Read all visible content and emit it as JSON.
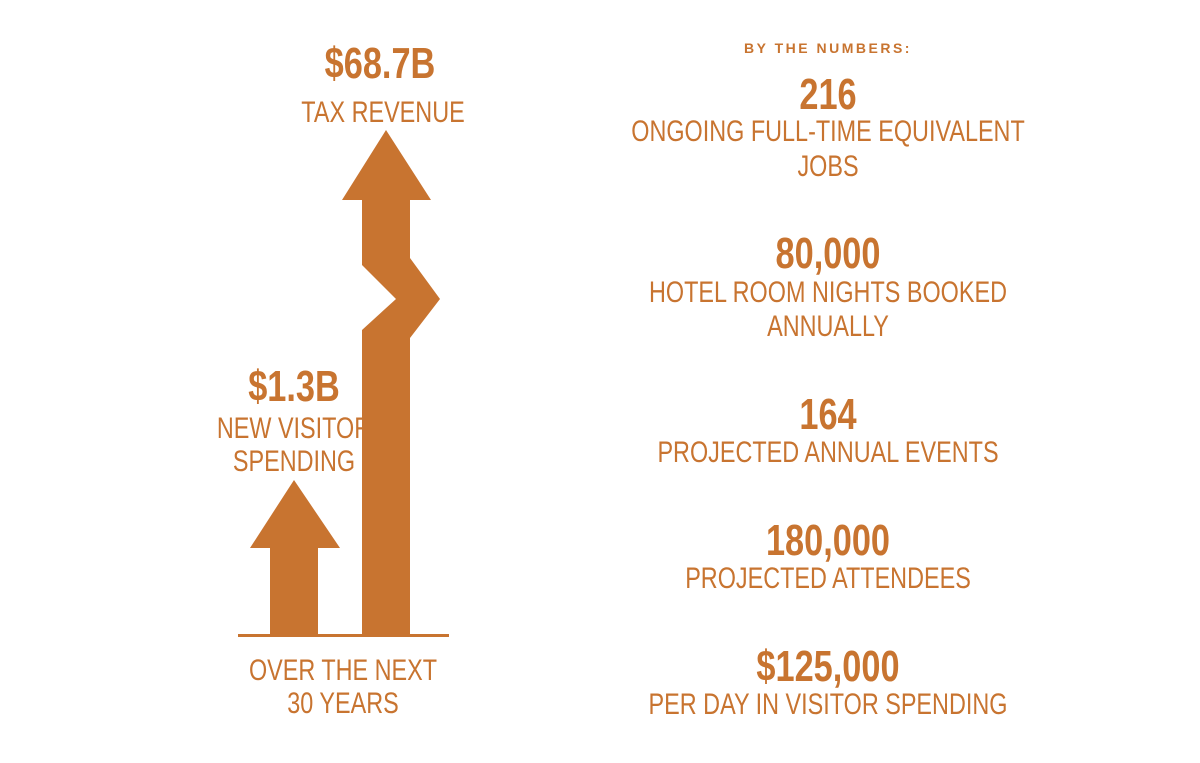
{
  "colors": {
    "accent": "#c87430",
    "background": "#ffffff"
  },
  "left": {
    "tax_revenue": {
      "value": "$68.7B",
      "label": "TAX REVENUE"
    },
    "visitor_spending": {
      "value": "$1.3B",
      "label_line1": "NEW VISITOR",
      "label_line2": "SPENDING"
    },
    "footer_line1": "OVER THE NEXT",
    "footer_line2": "30 YEARS"
  },
  "right": {
    "header": "BY THE NUMBERS:",
    "stats": [
      {
        "value": "216",
        "label_line1": "ONGOING FULL-TIME EQUIVALENT",
        "label_line2": "JOBS"
      },
      {
        "value": "80,000",
        "label_line1": "HOTEL ROOM NIGHTS BOOKED",
        "label_line2": "ANNUALLY"
      },
      {
        "value": "164",
        "label_line1": "PROJECTED ANNUAL EVENTS"
      },
      {
        "value": "180,000",
        "label_line1": "PROJECTED ATTENDEES"
      },
      {
        "value": "$125,000",
        "label_line1": "PER DAY IN VISITOR SPENDING"
      }
    ]
  }
}
